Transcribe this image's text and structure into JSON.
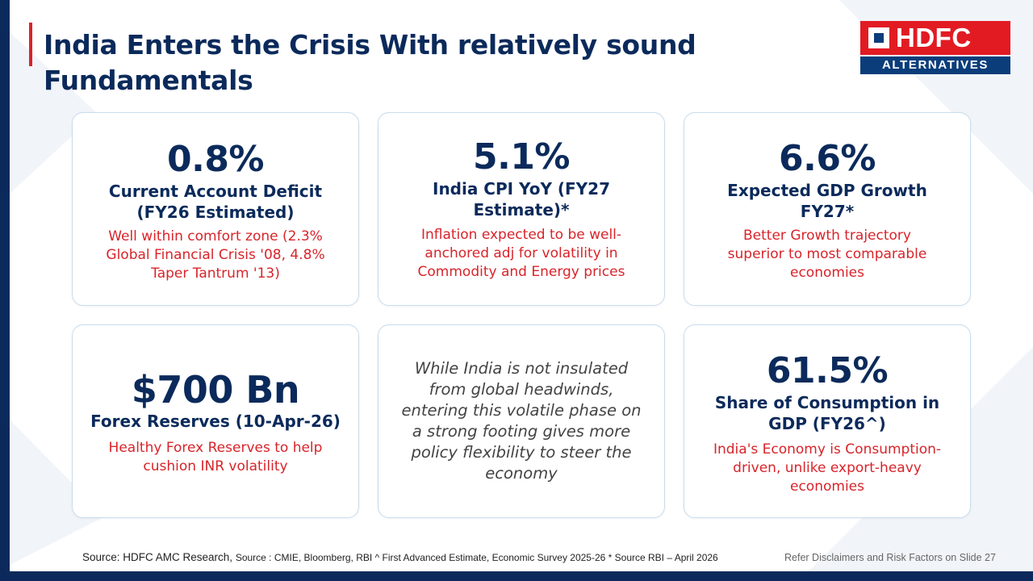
{
  "slide": {
    "title": "India Enters the Crisis With relatively sound Fundamentals"
  },
  "logo": {
    "name": "HDFC",
    "tagline": "ALTERNATIVES"
  },
  "cards": [
    {
      "value": "0.8%",
      "label": "Current Account Deficit (FY26 Estimated)",
      "description": "Well within comfort zone (2.3% Global Financial Crisis '08, 4.8% Taper Tantrum '13)"
    },
    {
      "value": "5.1%",
      "label": "India CPI YoY (FY27 Estimate)*",
      "description": "Inflation expected to be well-anchored adj for volatility in Commodity and Energy prices"
    },
    {
      "value": "6.6%",
      "label": "Expected GDP Growth FY27*",
      "description": "Better Growth trajectory superior to most comparable economies"
    },
    {
      "value": "$700 Bn",
      "label": "Forex Reserves (10-Apr-26)",
      "description": "Healthy Forex Reserves to help cushion INR volatility"
    },
    {
      "quote": "While India is not insulated from global headwinds, entering this volatile phase on a strong footing gives more policy flexibility to steer the economy"
    },
    {
      "value": "61.5%",
      "label": "Share of Consumption in GDP (FY26^)",
      "description": "India's Economy is Consumption-driven, unlike export-heavy economies"
    }
  ],
  "footer": {
    "source_main": "Source: HDFC AMC Research,",
    "source_detail": "Source : CMIE, Bloomberg, RBI ^ First Advanced Estimate, Economic Survey 2025-26 * Source RBI – April 2026",
    "disclaimer": "Refer Disclaimers and Risk Factors on Slide 27"
  },
  "colors": {
    "navy": "#0b2a5b",
    "red": "#d8242a",
    "card_border": "#c8dcec"
  }
}
